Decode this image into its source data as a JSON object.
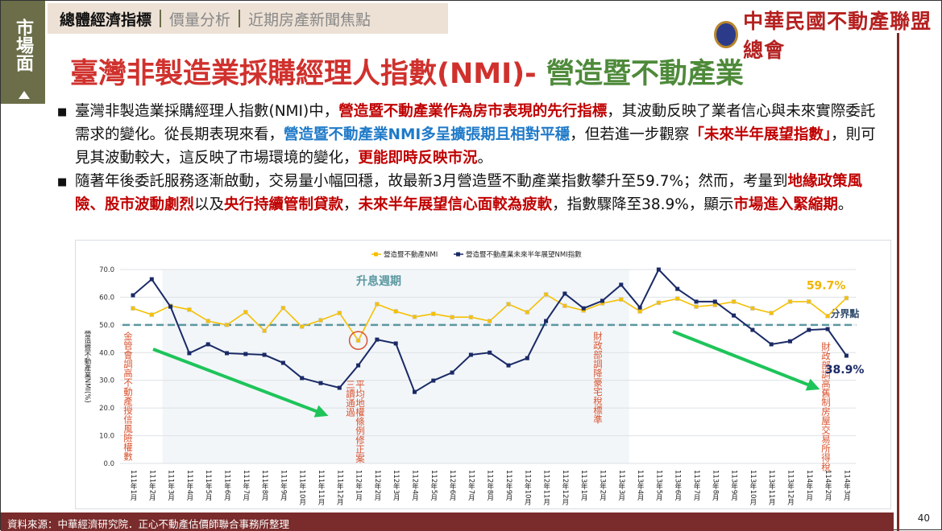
{
  "sidebar": {
    "label": "市場面"
  },
  "tabs": [
    "總體經濟指標",
    "價量分析",
    "近期房產新聞焦點"
  ],
  "logo": {
    "text": "中華民國不動產聯盟總會",
    "seal": "CREF"
  },
  "title": {
    "part1": "臺灣非製造業採購經理人指數(NMI)- ",
    "part2": "營造暨不動產業"
  },
  "bullets": [
    [
      {
        "t": "臺灣非製造業採購經理人指數(NMI)中，"
      },
      {
        "t": "營造暨不動產業作為房市表現的先行指標",
        "s": "r"
      },
      {
        "t": "，其波動反映了業者信心與未來實際委託需求的變化。從長期表現來看，"
      },
      {
        "t": "營造暨不動產業NMI多呈擴張期且相對平穩",
        "s": "b"
      },
      {
        "t": "，但若進一步觀察"
      },
      {
        "t": "「未來半年展望指數」",
        "s": "r"
      },
      {
        "t": "，則可見其波動較大，這反映了市場環境的變化，"
      },
      {
        "t": "更能即時反映市況",
        "s": "r"
      },
      {
        "t": "。"
      }
    ],
    [
      {
        "t": "隨著年後委託服務逐漸啟動，交易量小幅回穩，故最新3月營造暨不動產業指數攀升至59.7%；然而，考量到"
      },
      {
        "t": "地緣政策風險、股市波動劇烈",
        "s": "r"
      },
      {
        "t": "以及"
      },
      {
        "t": "央行持續管制貸款",
        "s": "r"
      },
      {
        "t": "，"
      },
      {
        "t": "未來半年展望信心面較為疲軟",
        "s": "r"
      },
      {
        "t": "，指數驟降至38.9%，顯示"
      },
      {
        "t": "市場進入緊縮期",
        "s": "r"
      },
      {
        "t": "。"
      }
    ]
  ],
  "chart_data": {
    "type": "line",
    "ylabel": "營造暨不動產業NMI(%)",
    "ylim": [
      0,
      70
    ],
    "yticks": [
      "0.0",
      "10.0",
      "20.0",
      "30.0",
      "40.0",
      "50.0",
      "60.0",
      "70.0"
    ],
    "categories": [
      "111年1月",
      "111年2月",
      "111年3月",
      "111年4月",
      "111年5月",
      "111年6月",
      "111年7月",
      "111年8月",
      "111年9月",
      "111年10月",
      "111年11月",
      "111年12月",
      "112年1月",
      "112年2月",
      "112年3月",
      "112年4月",
      "112年5月",
      "112年6月",
      "112年7月",
      "112年8月",
      "112年9月",
      "112年10月",
      "112年11月",
      "112年12月",
      "113年1月",
      "113年2月",
      "113年3月",
      "113年4月",
      "113年5月",
      "113年6月",
      "113年7月",
      "113年8月",
      "113年9月",
      "113年10月",
      "113年11月",
      "113年12月",
      "114年1月",
      "114年2月",
      "114年3月"
    ],
    "series": [
      {
        "name": "營造暨不動產NMI",
        "color": "#f5c000",
        "values": [
          56.0,
          53.7,
          56.9,
          55.5,
          51.4,
          50.0,
          54.6,
          47.9,
          56.1,
          49.4,
          51.7,
          54.3,
          44.4,
          57.5,
          54.9,
          52.9,
          54.0,
          52.8,
          52.8,
          51.4,
          57.5,
          54.6,
          61.0,
          56.9,
          55.2,
          57.8,
          59.2,
          54.9,
          58.0,
          59.5,
          56.6,
          57.2,
          58.4,
          56.0,
          54.3,
          58.4,
          58.4,
          53.2,
          59.7
        ]
      },
      {
        "name": "營造暨不動產業未來半年展望NMI指數",
        "color": "#1a2a66",
        "values": [
          60.7,
          66.5,
          56.6,
          39.8,
          43.0,
          39.8,
          39.5,
          39.2,
          36.3,
          30.8,
          29.0,
          27.3,
          35.4,
          44.7,
          43.3,
          25.8,
          29.9,
          32.8,
          39.2,
          40.0,
          35.4,
          38.0,
          51.4,
          61.3,
          56.0,
          58.7,
          64.5,
          56.3,
          70.0,
          63.0,
          58.4,
          58.4,
          53.4,
          48.2,
          43.0,
          44.1,
          48.2,
          48.5,
          38.9
        ]
      }
    ],
    "threshold": {
      "value": 50,
      "label": "分界點"
    },
    "shaded": {
      "from": "111年3月",
      "to": "113年3月",
      "label": "升息週期"
    },
    "labels": {
      "last_nmi": "59.7%",
      "last_outlook": "38.9%"
    },
    "annotations": [
      "金管會調高不動產授信風險權數",
      "平均地權條例修正案",
      "三讀通過",
      "財政部調降豪宅稅標準",
      "財政部調高舊制房屋交易所得稅"
    ],
    "legend": "top"
  },
  "footer": {
    "source": "資料來源：中華經濟研究院．正心不動產估價師聯合事務所整理",
    "page": "40"
  }
}
